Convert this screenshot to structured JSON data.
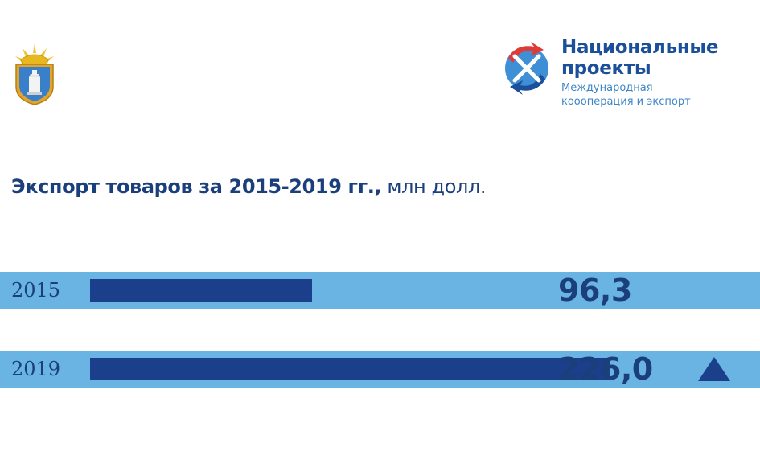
{
  "header": {
    "logo_title_line1": "Национальные",
    "logo_title_line2": "проекты",
    "logo_subtitle_line1": "Международная",
    "logo_subtitle_line2": "коооперация и экспорт"
  },
  "heading": {
    "bold": "Экспорт товаров за 2015-2019 гг.,",
    "regular": " млн долл."
  },
  "colors": {
    "band": "#6ab4e3",
    "bar": "#1b3f8a",
    "text": "#1b3f7a"
  },
  "chart_data": {
    "type": "bar",
    "orientation": "horizontal",
    "categories": [
      "2015",
      "2019"
    ],
    "values": [
      96.3,
      226.0
    ],
    "value_labels": [
      "96,3",
      "226,0"
    ],
    "trend_icon": "triangle-up-icon"
  }
}
